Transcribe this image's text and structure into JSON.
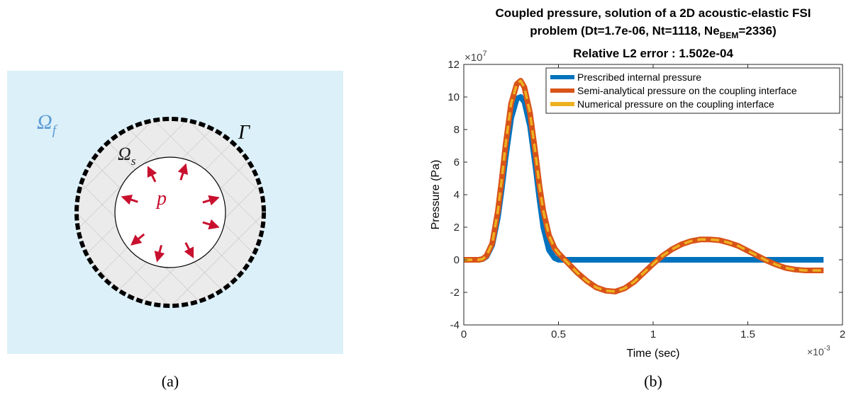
{
  "panel_a": {
    "caption": "(a)",
    "labels": {
      "fluid": "Ω",
      "fluid_sub": "f",
      "solid": "Ω",
      "solid_sub": "s",
      "interface": "Γ",
      "pressure": "p"
    },
    "colors": {
      "fluid": "#dcf0f9",
      "solid": "#ebebeb",
      "hatch": "#bdbdbd",
      "arrow": "#c8102e",
      "fluid_label": "#5b9bd5"
    }
  },
  "panel_b": {
    "caption": "(b)",
    "exponent_y": {
      "base": "×10",
      "exp": "7"
    },
    "exponent_x": {
      "base": "×10",
      "exp": "-3"
    }
  },
  "chart_data": {
    "type": "line",
    "title_line1": "Coupled pressure, solution of a 2D acoustic-elastic FSI",
    "title_line2_pre": "problem (Dt=1.7e-06, Nt=1118, Ne",
    "title_line2_sub": "BEM",
    "title_line2_post": "=2336)",
    "subtitle": "Relative L2 error : 1.502e-04",
    "xlabel": "Time (sec)",
    "ylabel": "Pressure (Pa)",
    "xlim": [
      0,
      2
    ],
    "ylim": [
      -4,
      12
    ],
    "xticks": [
      0,
      0.5,
      1,
      1.5,
      2
    ],
    "xtick_labels": [
      "0",
      "0.5",
      "1",
      "1.5",
      "2"
    ],
    "yticks": [
      -4,
      -2,
      0,
      2,
      4,
      6,
      8,
      10,
      12
    ],
    "ytick_labels": [
      "-4",
      "-2",
      "0",
      "2",
      "4",
      "6",
      "8",
      "10",
      "12"
    ],
    "grid": false,
    "legend_position": "top-right",
    "series": [
      {
        "name": "Prescribed internal pressure",
        "color": "#0072bd",
        "x": [
          0,
          0.08,
          0.1,
          0.12,
          0.15,
          0.18,
          0.2,
          0.22,
          0.25,
          0.28,
          0.3,
          0.32,
          0.35,
          0.38,
          0.4,
          0.42,
          0.45,
          0.48,
          0.5,
          0.52,
          1.9
        ],
        "y": [
          0,
          0,
          0.05,
          0.2,
          0.9,
          2.6,
          4.3,
          6.2,
          8.7,
          9.9,
          10.0,
          9.7,
          8.2,
          5.6,
          3.7,
          2.0,
          0.6,
          0.1,
          0,
          0,
          0
        ]
      },
      {
        "name": "Semi-analytical pressure on the coupling interface",
        "color": "#d95319",
        "x": [
          0,
          0.08,
          0.1,
          0.12,
          0.15,
          0.18,
          0.2,
          0.22,
          0.25,
          0.28,
          0.3,
          0.32,
          0.35,
          0.38,
          0.4,
          0.42,
          0.45,
          0.48,
          0.5,
          0.55,
          0.6,
          0.65,
          0.7,
          0.75,
          0.8,
          0.85,
          0.9,
          0.95,
          1.0,
          1.05,
          1.1,
          1.15,
          1.2,
          1.25,
          1.3,
          1.35,
          1.4,
          1.45,
          1.5,
          1.55,
          1.6,
          1.65,
          1.7,
          1.75,
          1.8,
          1.85,
          1.9
        ],
        "y": [
          0,
          0,
          0.05,
          0.25,
          1.0,
          3.0,
          4.9,
          7.0,
          9.6,
          10.8,
          11.0,
          10.6,
          9.0,
          6.4,
          4.5,
          3.0,
          1.5,
          0.7,
          0.4,
          -0.2,
          -0.8,
          -1.3,
          -1.7,
          -1.9,
          -1.95,
          -1.75,
          -1.35,
          -0.8,
          -0.25,
          0.25,
          0.65,
          0.95,
          1.15,
          1.25,
          1.25,
          1.2,
          1.05,
          0.85,
          0.55,
          0.25,
          -0.05,
          -0.3,
          -0.5,
          -0.6,
          -0.65,
          -0.65,
          -0.65
        ]
      },
      {
        "name": "Numerical pressure on the coupling interface",
        "color": "#edb120",
        "x": [
          0,
          0.08,
          0.1,
          0.12,
          0.15,
          0.18,
          0.2,
          0.22,
          0.25,
          0.28,
          0.3,
          0.32,
          0.35,
          0.38,
          0.4,
          0.42,
          0.45,
          0.48,
          0.5,
          0.55,
          0.6,
          0.65,
          0.7,
          0.75,
          0.8,
          0.85,
          0.9,
          0.95,
          1.0,
          1.05,
          1.1,
          1.15,
          1.2,
          1.25,
          1.3,
          1.35,
          1.4,
          1.45,
          1.5,
          1.55,
          1.6,
          1.65,
          1.7,
          1.75,
          1.8,
          1.85,
          1.9
        ],
        "y": [
          0,
          0,
          0.05,
          0.25,
          1.0,
          3.0,
          4.9,
          7.0,
          9.6,
          10.8,
          11.0,
          10.6,
          9.0,
          6.4,
          4.5,
          3.0,
          1.5,
          0.7,
          0.4,
          -0.2,
          -0.8,
          -1.3,
          -1.7,
          -1.9,
          -1.95,
          -1.75,
          -1.35,
          -0.8,
          -0.25,
          0.25,
          0.65,
          0.95,
          1.15,
          1.25,
          1.25,
          1.2,
          1.05,
          0.85,
          0.55,
          0.25,
          -0.05,
          -0.3,
          -0.5,
          -0.6,
          -0.65,
          -0.65,
          -0.65
        ]
      }
    ]
  }
}
